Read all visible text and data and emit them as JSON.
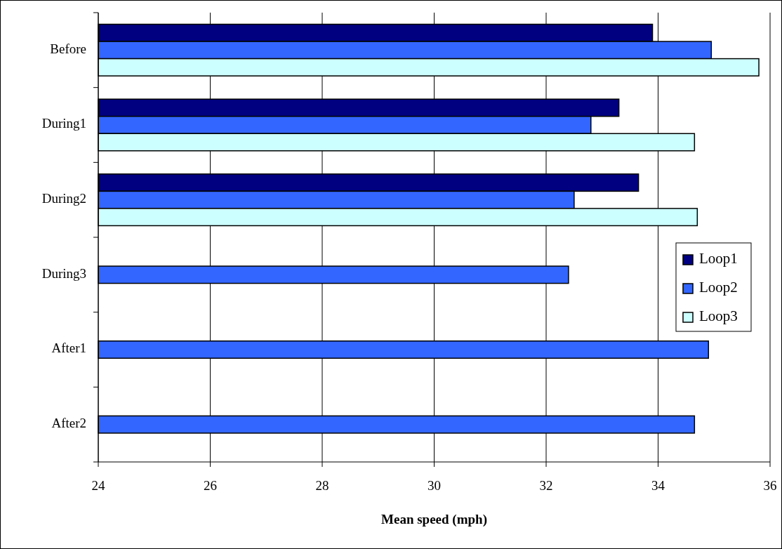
{
  "chart_data": {
    "type": "bar",
    "orientation": "horizontal",
    "xlabel": "Mean speed (mph)",
    "categories": [
      "Before",
      "During1",
      "During2",
      "During3",
      "After1",
      "After2"
    ],
    "series": [
      {
        "name": "Loop1",
        "color": "#000080",
        "values": [
          33.9,
          33.3,
          33.65,
          null,
          null,
          null
        ]
      },
      {
        "name": "Loop2",
        "color": "#3366ff",
        "values": [
          34.95,
          32.8,
          32.5,
          32.4,
          34.9,
          34.65
        ]
      },
      {
        "name": "Loop3",
        "color": "#ccffff",
        "values": [
          35.8,
          34.65,
          34.7,
          null,
          null,
          null
        ]
      }
    ],
    "xlim": [
      24,
      36
    ],
    "xticks": [
      24,
      26,
      28,
      30,
      32,
      34,
      36
    ],
    "grid": "x",
    "legend": "right"
  }
}
